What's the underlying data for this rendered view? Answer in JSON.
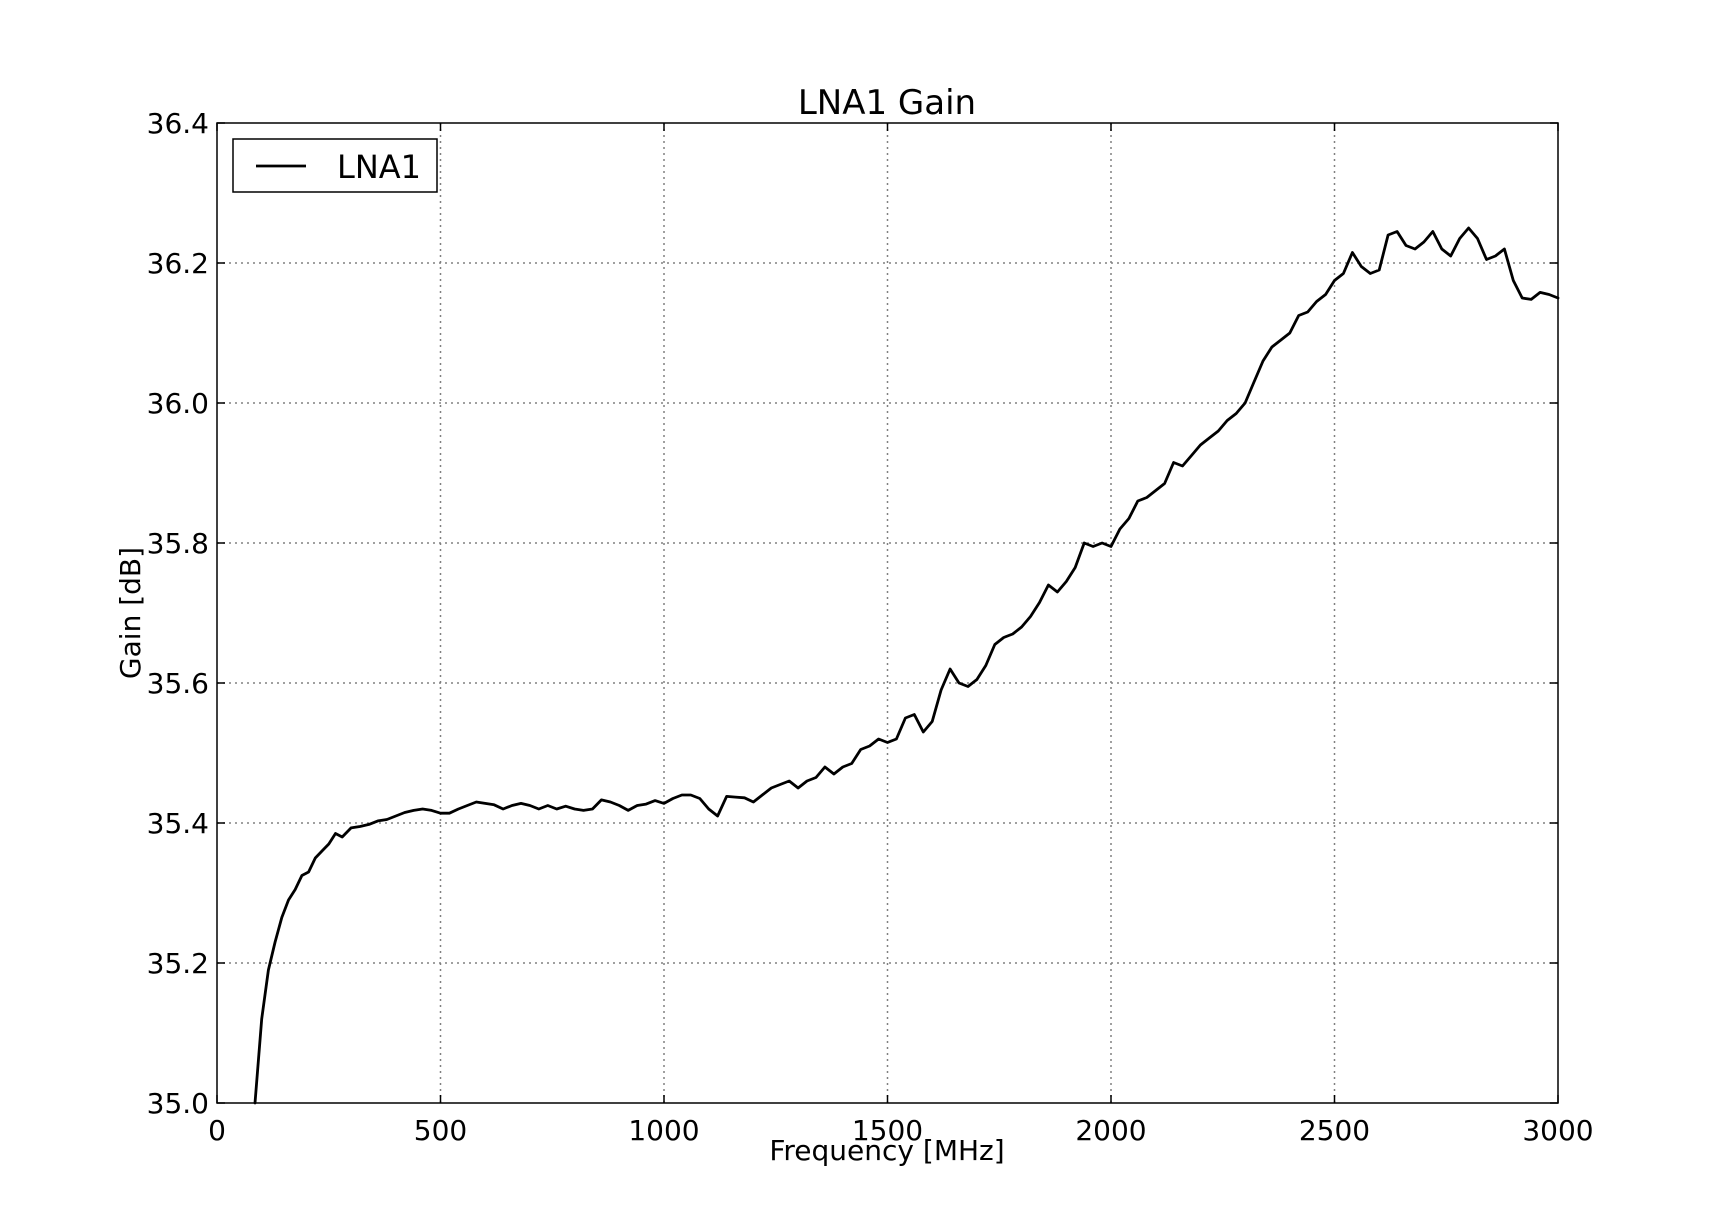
{
  "chart_data": {
    "type": "line",
    "title": "LNA1 Gain",
    "xlabel": "Frequency [MHz]",
    "ylabel": "Gain [dB]",
    "xlim": [
      0,
      3000
    ],
    "ylim": [
      35.0,
      36.4
    ],
    "xticks": [
      "0",
      "500",
      "1000",
      "1500",
      "2000",
      "2500",
      "3000"
    ],
    "yticks": [
      "35.0",
      "35.2",
      "35.4",
      "35.6",
      "35.8",
      "36.0",
      "36.2",
      "36.4"
    ],
    "grid": true,
    "legend_position": "top-left",
    "series": [
      {
        "name": "LNA1",
        "color": "#000000",
        "x": [
          85,
          100,
          115,
          130,
          145,
          160,
          175,
          190,
          205,
          220,
          235,
          250,
          265,
          280,
          300,
          320,
          340,
          360,
          380,
          400,
          420,
          440,
          460,
          480,
          500,
          520,
          540,
          560,
          580,
          600,
          620,
          640,
          660,
          680,
          700,
          720,
          740,
          760,
          780,
          800,
          820,
          840,
          860,
          880,
          900,
          920,
          940,
          960,
          980,
          1000,
          1020,
          1040,
          1060,
          1080,
          1100,
          1120,
          1140,
          1160,
          1180,
          1200,
          1220,
          1240,
          1260,
          1280,
          1300,
          1320,
          1340,
          1360,
          1380,
          1400,
          1420,
          1440,
          1460,
          1480,
          1500,
          1520,
          1540,
          1560,
          1580,
          1600,
          1620,
          1640,
          1660,
          1680,
          1700,
          1720,
          1740,
          1760,
          1780,
          1800,
          1820,
          1840,
          1860,
          1880,
          1900,
          1920,
          1940,
          1960,
          1980,
          2000,
          2020,
          2040,
          2060,
          2080,
          2100,
          2120,
          2140,
          2160,
          2180,
          2200,
          2220,
          2240,
          2260,
          2280,
          2300,
          2320,
          2340,
          2360,
          2380,
          2400,
          2420,
          2440,
          2460,
          2480,
          2500,
          2520,
          2540,
          2560,
          2580,
          2600,
          2620,
          2640,
          2660,
          2680,
          2700,
          2720,
          2740,
          2760,
          2780,
          2800,
          2820,
          2840,
          2860,
          2880,
          2900,
          2920,
          2940,
          2960,
          2980,
          3000
        ],
        "values": [
          35.0,
          35.12,
          35.19,
          35.23,
          35.265,
          35.29,
          35.305,
          35.325,
          35.33,
          35.35,
          35.36,
          35.37,
          35.385,
          35.38,
          35.393,
          35.395,
          35.398,
          35.403,
          35.405,
          35.41,
          35.415,
          35.418,
          35.42,
          35.418,
          35.414,
          35.414,
          35.42,
          35.425,
          35.43,
          35.428,
          35.426,
          35.42,
          35.425,
          35.428,
          35.425,
          35.42,
          35.425,
          35.42,
          35.424,
          35.42,
          35.418,
          35.42,
          35.433,
          35.43,
          35.425,
          35.418,
          35.425,
          35.427,
          35.432,
          35.428,
          35.435,
          35.44,
          35.44,
          35.435,
          35.42,
          35.41,
          35.438,
          35.437,
          35.436,
          35.43,
          35.44,
          35.45,
          35.455,
          35.46,
          35.45,
          35.46,
          35.465,
          35.48,
          35.47,
          35.48,
          35.485,
          35.505,
          35.51,
          35.52,
          35.515,
          35.52,
          35.55,
          35.555,
          35.53,
          35.545,
          35.59,
          35.62,
          35.6,
          35.595,
          35.605,
          35.625,
          35.655,
          35.665,
          35.67,
          35.68,
          35.695,
          35.715,
          35.74,
          35.73,
          35.745,
          35.765,
          35.8,
          35.795,
          35.8,
          35.795,
          35.82,
          35.835,
          35.86,
          35.865,
          35.875,
          35.885,
          35.915,
          35.91,
          35.925,
          35.94,
          35.95,
          35.96,
          35.975,
          35.985,
          36.0,
          36.03,
          36.06,
          36.08,
          36.09,
          36.1,
          36.125,
          36.13,
          36.145,
          36.155,
          36.175,
          36.185,
          36.215,
          36.195,
          36.185,
          36.19,
          36.24,
          36.245,
          36.225,
          36.22,
          36.23,
          36.245,
          36.22,
          36.21,
          36.235,
          36.25,
          36.235,
          36.205,
          36.21,
          36.22,
          36.175,
          36.15,
          36.148,
          36.158,
          36.155,
          36.15
        ]
      }
    ]
  }
}
